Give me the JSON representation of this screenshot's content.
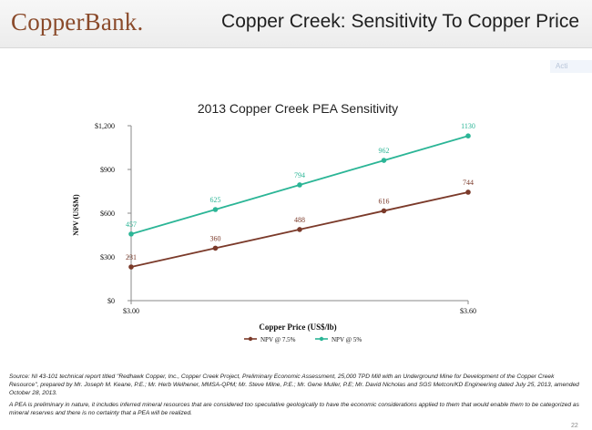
{
  "header": {
    "logo_text": "CopperBank.",
    "title": "Copper Creek:  Sensitivity To Copper Price"
  },
  "corner_tag": "Acti",
  "chart_data": {
    "type": "line",
    "title": "2013 Copper Creek PEA Sensitivity",
    "xlabel": "Copper Price (US$/lb)",
    "ylabel": "NPV (US$M)",
    "x_tick_labels": [
      "$3.00",
      "$3.60"
    ],
    "x": [
      3.0,
      3.15,
      3.3,
      3.45,
      3.6
    ],
    "xlim": [
      3.0,
      3.6
    ],
    "ylim": [
      0,
      1200
    ],
    "y_ticks": [
      0,
      300,
      600,
      900,
      1200
    ],
    "y_tick_labels": [
      "$0",
      "$300",
      "$600",
      "$900",
      "$1,200"
    ],
    "legend_position": "bottom",
    "grid": false,
    "series": [
      {
        "name": "NPV @ 7.5%",
        "color": "#7b3a2a",
        "values": [
          231,
          360,
          488,
          616,
          744
        ]
      },
      {
        "name": "NPV @ 5%",
        "color": "#2bb596",
        "values": [
          457,
          625,
          794,
          962,
          1130
        ]
      }
    ]
  },
  "notes": {
    "source": "Source: NI 43-101 technical report titled \"Redhawk Copper, Inc., Copper Creek Project, Preliminary Economic Assessment, 25,000 TPD Mill with an Underground Mine for Development of the Copper Creek Resource\", prepared by Mr. Joseph M. Keane, P.E.; Mr. Herb Welhener, MMSA-QPM; Mr. Steve Milne, P.E.; Mr. Gene Muller, P.E; Mr. David Nicholas and SGS Metcon/KD Engineering dated July 25, 2013, amended October 28, 2013.",
    "disclaimer": "A PEA is preliminary in nature, it includes inferred mineral resources that are considered too speculative geologically to have the economic considerations applied to them that would enable them to be categorized as mineral reserves and there is no certainty that a PEA will be realized."
  },
  "page_number": "22"
}
